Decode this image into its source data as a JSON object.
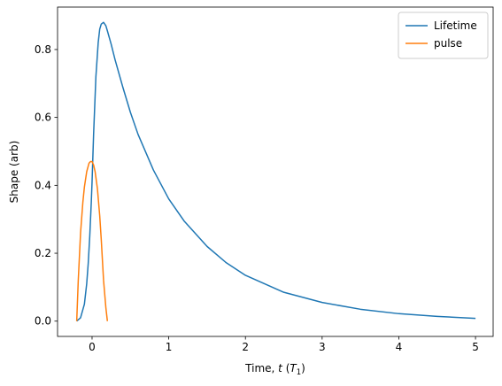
{
  "chart_data": {
    "type": "line",
    "title": "",
    "xlabel": "Time, t (T1)",
    "xlabel_parts": {
      "prefix": "Time, ",
      "var": "t",
      "open": " (",
      "unit": "T",
      "sub": "1",
      "close": ")"
    },
    "ylabel": "Shape (arb)",
    "xlim": [
      -0.45,
      5.23
    ],
    "ylim": [
      -0.045,
      0.925
    ],
    "xticks": [
      0,
      1,
      2,
      3,
      4,
      5
    ],
    "yticks": [
      0.0,
      0.2,
      0.4,
      0.6,
      0.8
    ],
    "xtick_labels": [
      "0",
      "1",
      "2",
      "3",
      "4",
      "5"
    ],
    "ytick_labels": [
      "0.0",
      "0.2",
      "0.4",
      "0.6",
      "0.8"
    ],
    "grid": false,
    "legend_position": "top-right",
    "series": [
      {
        "name": "Lifetime",
        "color": "#1f77b4",
        "x": [
          -0.2,
          -0.15,
          -0.1,
          -0.07,
          -0.05,
          -0.03,
          -0.01,
          0.0,
          0.02,
          0.05,
          0.08,
          0.1,
          0.12,
          0.15,
          0.18,
          0.2,
          0.25,
          0.3,
          0.4,
          0.5,
          0.6,
          0.8,
          1.0,
          1.2,
          1.5,
          1.75,
          2.0,
          2.5,
          3.0,
          3.5,
          4.0,
          4.5,
          5.0
        ],
        "y": [
          0.0,
          0.01,
          0.05,
          0.11,
          0.17,
          0.25,
          0.35,
          0.41,
          0.55,
          0.72,
          0.82,
          0.86,
          0.875,
          0.88,
          0.87,
          0.855,
          0.815,
          0.77,
          0.69,
          0.615,
          0.55,
          0.445,
          0.36,
          0.295,
          0.22,
          0.172,
          0.135,
          0.085,
          0.055,
          0.035,
          0.022,
          0.014,
          0.008
        ]
      },
      {
        "name": "pulse",
        "color": "#ff7f0e",
        "x": [
          -0.2,
          -0.18,
          -0.15,
          -0.12,
          -0.1,
          -0.07,
          -0.04,
          -0.02,
          0.0,
          0.02,
          0.04,
          0.07,
          0.1,
          0.12,
          0.15,
          0.18,
          0.2
        ],
        "y": [
          0.0,
          0.12,
          0.26,
          0.35,
          0.395,
          0.44,
          0.465,
          0.47,
          0.47,
          0.46,
          0.44,
          0.39,
          0.31,
          0.24,
          0.12,
          0.04,
          0.0
        ]
      }
    ]
  }
}
